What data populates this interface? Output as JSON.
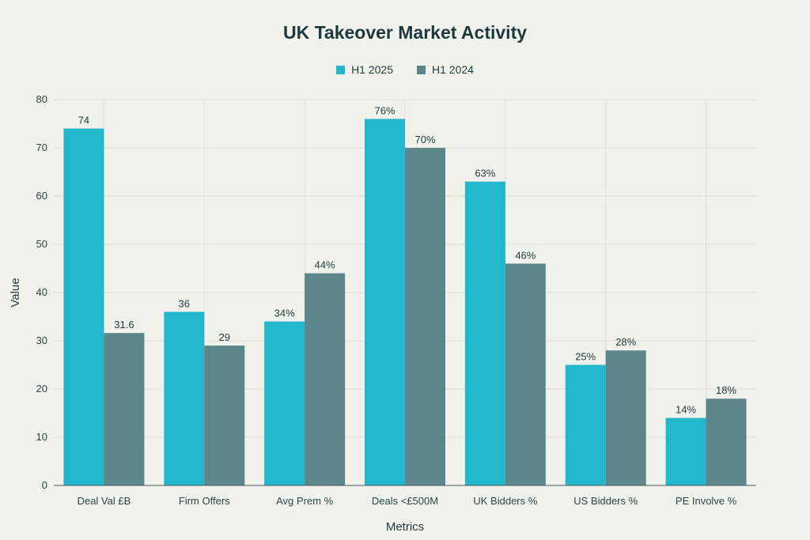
{
  "chart_data": {
    "type": "bar",
    "title": "UK Takeover Market Activity",
    "xlabel": "Metrics",
    "ylabel": "Value",
    "ylim": [
      0,
      80
    ],
    "yticks": [
      0,
      10,
      20,
      30,
      40,
      50,
      60,
      70,
      80
    ],
    "grid": true,
    "legend_position": "top-center",
    "categories": [
      "Deal Val £B",
      "Firm Offers",
      "Avg Prem %",
      "Deals <£500M",
      "UK Bidders %",
      "US Bidders %",
      "PE Involve %"
    ],
    "series": [
      {
        "name": "H1 2025",
        "color": "#22b7cc",
        "values": [
          74,
          36,
          34,
          76,
          63,
          25,
          14
        ],
        "labels": [
          "74",
          "36",
          "34%",
          "76%",
          "63%",
          "25%",
          "14%"
        ]
      },
      {
        "name": "H1 2024",
        "color": "#5d868b",
        "values": [
          31.6,
          29,
          44,
          70,
          46,
          28,
          18
        ],
        "labels": [
          "31.6",
          "29",
          "44%",
          "70%",
          "46%",
          "28%",
          "18%"
        ]
      }
    ]
  }
}
